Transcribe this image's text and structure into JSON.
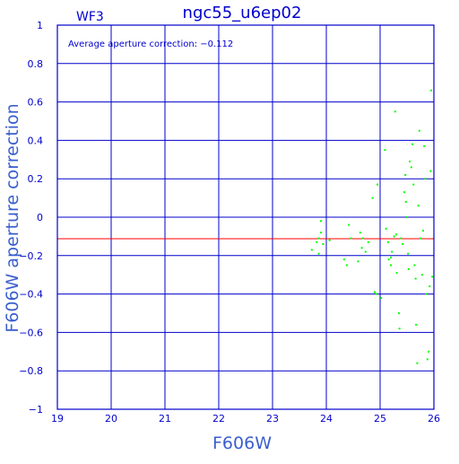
{
  "chart_data": {
    "type": "scatter",
    "title": "ngc55_u6ep02",
    "chip_label": "WF3",
    "annotation": "Average aperture correction: −0.112",
    "xlabel": "F606W",
    "ylabel": "F606W aperture correction",
    "xlim": [
      19,
      26
    ],
    "ylim": [
      -1,
      1
    ],
    "xticks": [
      19,
      20,
      21,
      22,
      23,
      24,
      25,
      26
    ],
    "yticks": [
      -1,
      -0.8,
      -0.6,
      -0.4,
      -0.2,
      0,
      0.2,
      0.4,
      0.6,
      0.8,
      1
    ],
    "ytick_labels": [
      "−1",
      "−0.8",
      "−0.6",
      "−0.4",
      "−0.2",
      "0",
      "0.2",
      "0.4",
      "0.6",
      "0.8",
      "1"
    ],
    "grid": true,
    "reference_line": {
      "y": -0.112,
      "color": "#ff0000"
    },
    "colors": {
      "axes": "#0000cc",
      "points": "#00ff00",
      "reference": "#ff0000"
    },
    "points": [
      {
        "x": 23.73,
        "y": -0.17
      },
      {
        "x": 23.82,
        "y": -0.13
      },
      {
        "x": 23.86,
        "y": -0.19
      },
      {
        "x": 23.86,
        "y": -0.11
      },
      {
        "x": 23.9,
        "y": -0.02
      },
      {
        "x": 23.9,
        "y": -0.08
      },
      {
        "x": 23.94,
        "y": -0.14
      },
      {
        "x": 24.06,
        "y": -0.12
      },
      {
        "x": 24.33,
        "y": -0.22
      },
      {
        "x": 24.38,
        "y": -0.25
      },
      {
        "x": 24.42,
        "y": -0.04
      },
      {
        "x": 24.46,
        "y": -0.11
      },
      {
        "x": 24.59,
        "y": -0.23
      },
      {
        "x": 24.63,
        "y": -0.08
      },
      {
        "x": 24.66,
        "y": -0.16
      },
      {
        "x": 24.68,
        "y": -0.11
      },
      {
        "x": 24.73,
        "y": -0.18
      },
      {
        "x": 24.78,
        "y": -0.13
      },
      {
        "x": 24.86,
        "y": 0.1
      },
      {
        "x": 24.9,
        "y": -0.39
      },
      {
        "x": 24.93,
        "y": -0.4
      },
      {
        "x": 24.95,
        "y": 0.17
      },
      {
        "x": 25.02,
        "y": -0.42
      },
      {
        "x": 25.09,
        "y": 0.35
      },
      {
        "x": 25.11,
        "y": -0.06
      },
      {
        "x": 25.15,
        "y": -0.13
      },
      {
        "x": 25.16,
        "y": -0.22
      },
      {
        "x": 25.2,
        "y": -0.21
      },
      {
        "x": 25.2,
        "y": -0.25
      },
      {
        "x": 25.22,
        "y": -0.18
      },
      {
        "x": 25.26,
        "y": -0.1
      },
      {
        "x": 25.28,
        "y": 0.55
      },
      {
        "x": 25.3,
        "y": -0.09
      },
      {
        "x": 25.31,
        "y": -0.29
      },
      {
        "x": 25.35,
        "y": -0.5
      },
      {
        "x": 25.36,
        "y": -0.58
      },
      {
        "x": 25.39,
        "y": -0.11
      },
      {
        "x": 25.42,
        "y": -0.14
      },
      {
        "x": 25.45,
        "y": 0.13
      },
      {
        "x": 25.47,
        "y": 0.22
      },
      {
        "x": 25.48,
        "y": 0.08
      },
      {
        "x": 25.5,
        "y": 0.0
      },
      {
        "x": 25.52,
        "y": -0.19
      },
      {
        "x": 25.53,
        "y": -0.27
      },
      {
        "x": 25.55,
        "y": 0.29
      },
      {
        "x": 25.58,
        "y": 0.26
      },
      {
        "x": 25.6,
        "y": 0.38
      },
      {
        "x": 25.62,
        "y": 0.17
      },
      {
        "x": 25.64,
        "y": -0.25
      },
      {
        "x": 25.66,
        "y": -0.32
      },
      {
        "x": 25.67,
        "y": -0.56
      },
      {
        "x": 25.69,
        "y": -0.76
      },
      {
        "x": 25.71,
        "y": 0.06
      },
      {
        "x": 25.73,
        "y": 0.45
      },
      {
        "x": 25.75,
        "y": -0.11
      },
      {
        "x": 25.78,
        "y": -0.3
      },
      {
        "x": 25.8,
        "y": -0.07
      },
      {
        "x": 25.82,
        "y": 0.37
      },
      {
        "x": 25.84,
        "y": 0.2
      },
      {
        "x": 25.86,
        "y": -0.4
      },
      {
        "x": 25.88,
        "y": -0.74
      },
      {
        "x": 25.9,
        "y": -0.7
      },
      {
        "x": 25.92,
        "y": -0.36
      },
      {
        "x": 25.94,
        "y": 0.24
      },
      {
        "x": 25.95,
        "y": 0.66
      },
      {
        "x": 25.97,
        "y": -0.31
      }
    ]
  }
}
